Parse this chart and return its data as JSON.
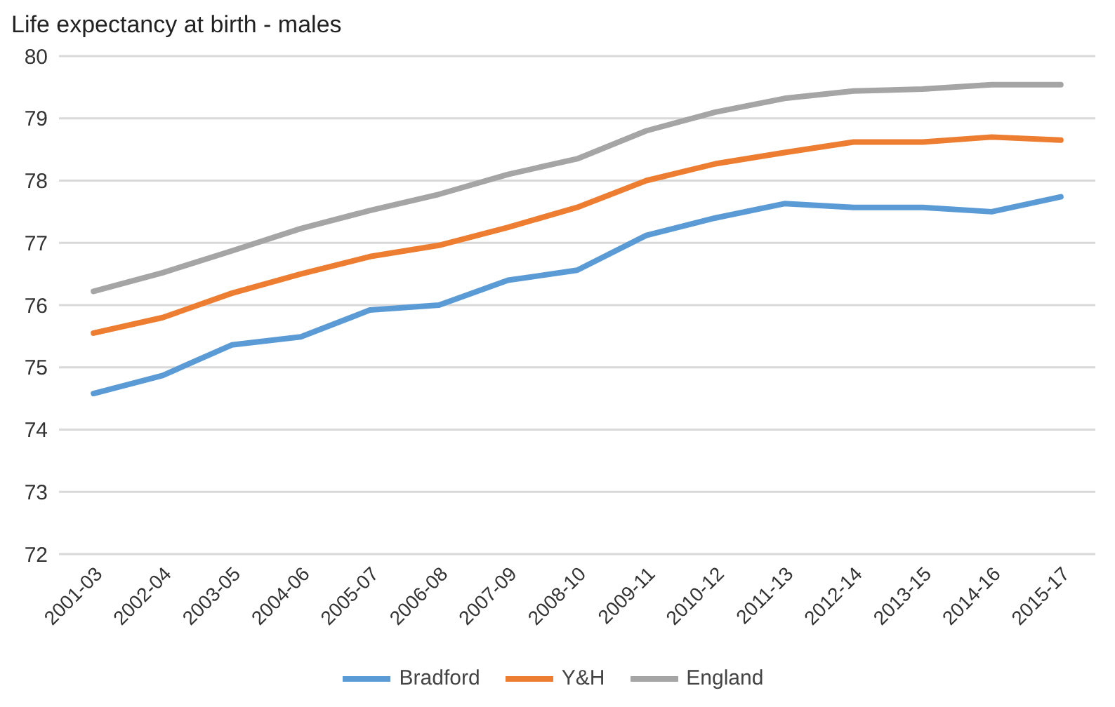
{
  "chart_data": {
    "type": "line",
    "title": "Life expectancy at birth - males",
    "categories": [
      "2001-03",
      "2002-04",
      "2003-05",
      "2004-06",
      "2005-07",
      "2006-08",
      "2007-09",
      "2008-10",
      "2009-11",
      "2010-12",
      "2011-13",
      "2012-14",
      "2013-15",
      "2014-16",
      "2015-17"
    ],
    "series": [
      {
        "name": "Bradford",
        "color": "#5b9bd5",
        "values": [
          74.58,
          74.87,
          75.36,
          75.49,
          75.92,
          76.0,
          76.4,
          76.56,
          77.12,
          77.4,
          77.63,
          77.57,
          77.57,
          77.5,
          77.74
        ]
      },
      {
        "name": "Y&H",
        "color": "#ed7d31",
        "values": [
          75.55,
          75.8,
          76.19,
          76.5,
          76.78,
          76.96,
          77.25,
          77.57,
          78.0,
          78.27,
          78.45,
          78.62,
          78.62,
          78.7,
          78.65
        ]
      },
      {
        "name": "England",
        "color": "#a5a5a5",
        "values": [
          76.22,
          76.52,
          76.87,
          77.23,
          77.52,
          77.78,
          78.1,
          78.35,
          78.8,
          79.1,
          79.32,
          79.44,
          79.47,
          79.54,
          79.54
        ]
      }
    ],
    "ylim": [
      72,
      80
    ],
    "yticks": [
      72,
      73,
      74,
      75,
      76,
      77,
      78,
      79,
      80
    ],
    "grid": "y",
    "legend": "bottom",
    "marker": "none",
    "line_style": "solid"
  }
}
